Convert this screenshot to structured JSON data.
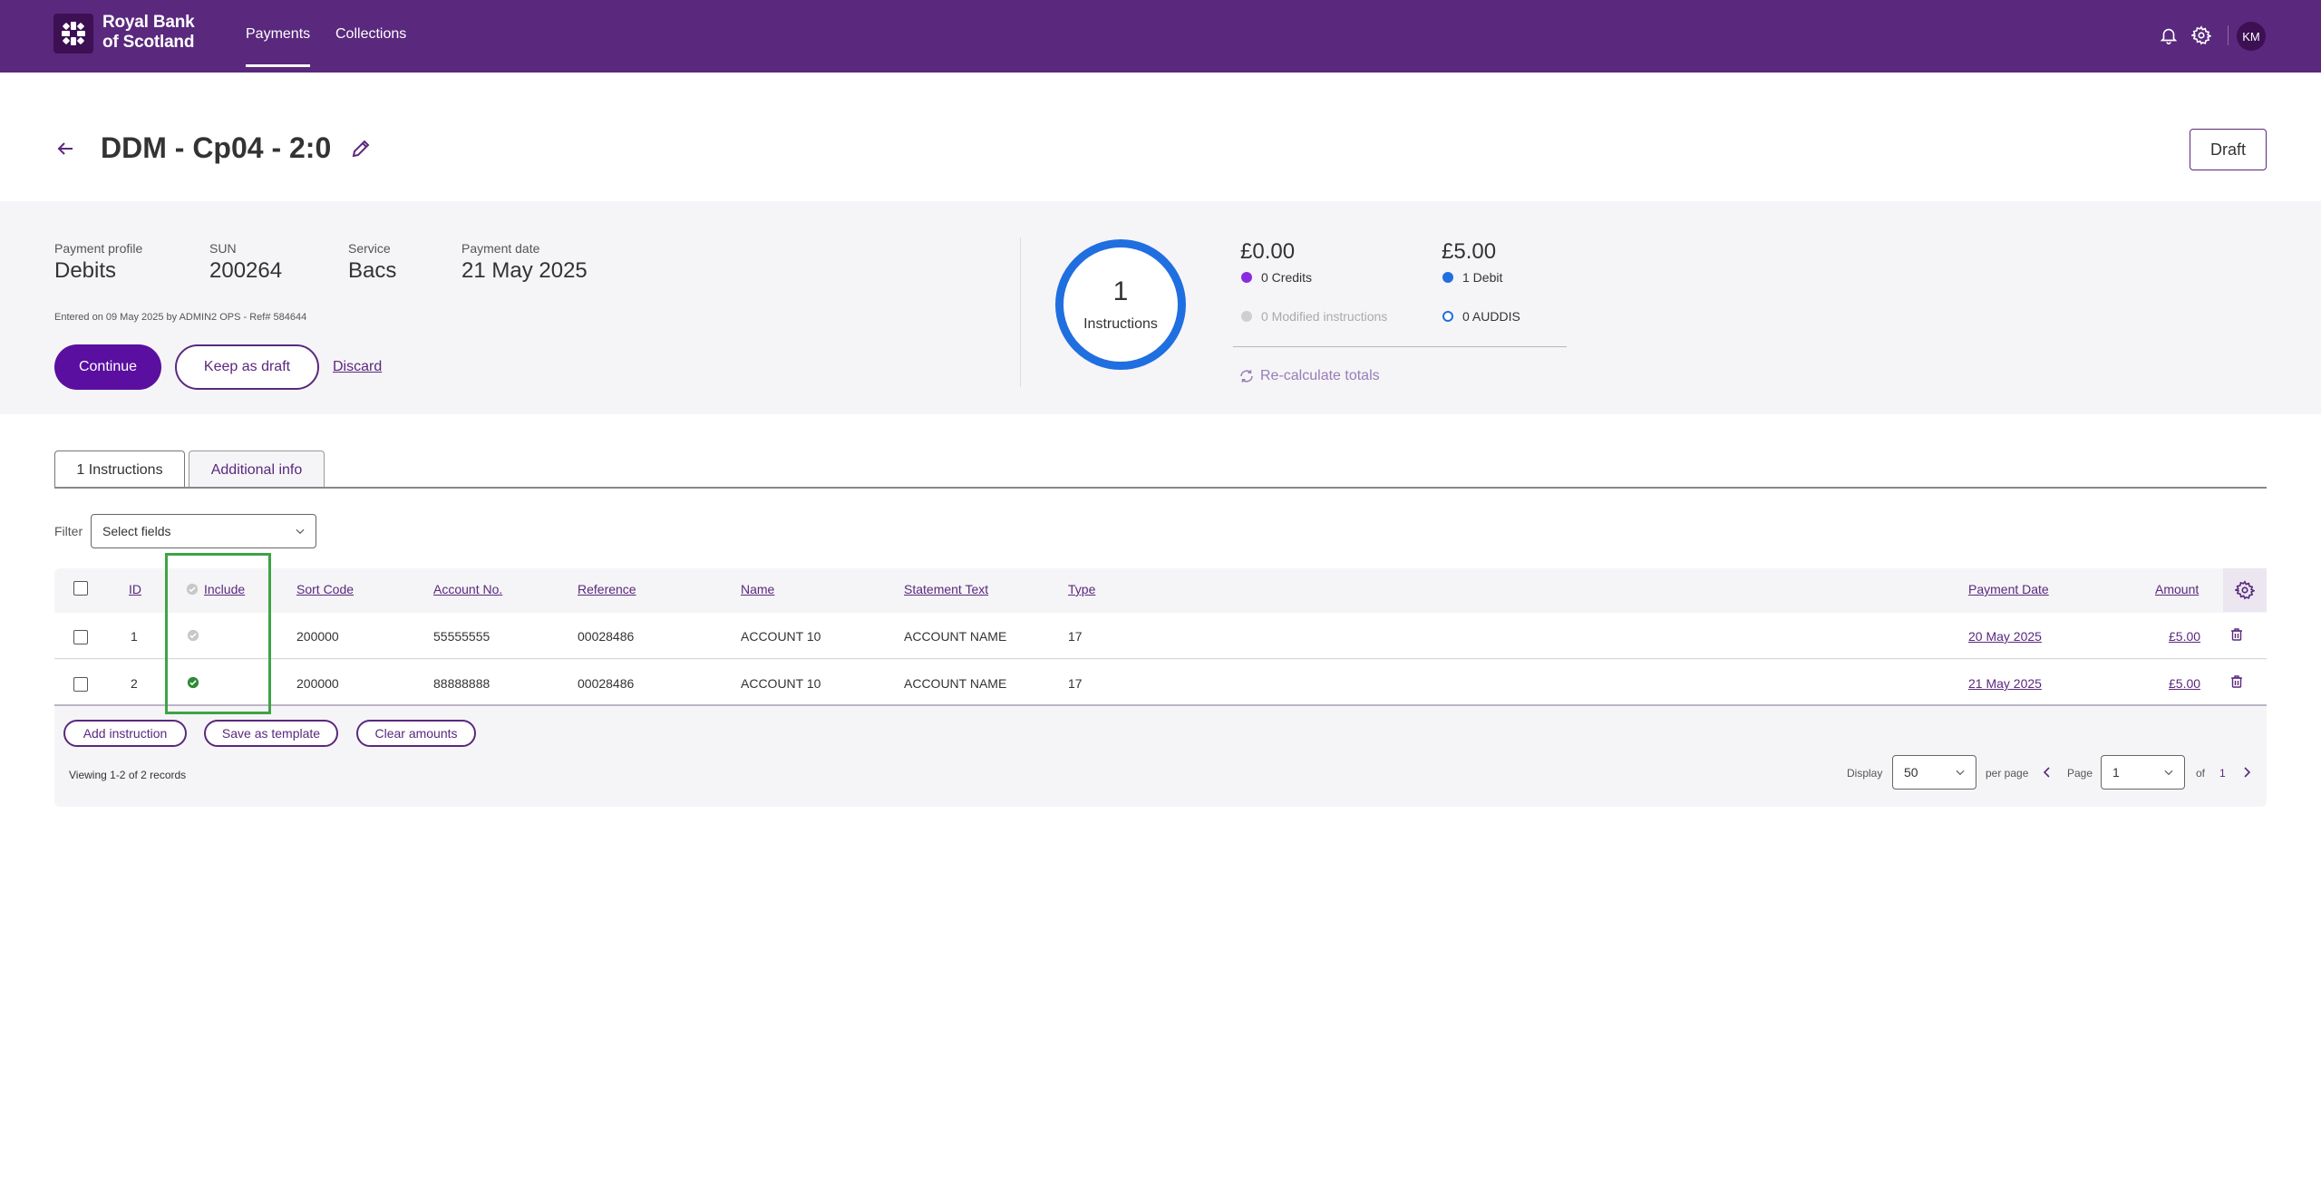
{
  "app": {
    "brand_line1": "Royal Bank",
    "brand_line2": "of Scotland",
    "nav": [
      "Payments",
      "Collections"
    ],
    "user_initials": "KM"
  },
  "header": {
    "title": "DDM - Cp04 - 2:0",
    "status": "Draft"
  },
  "summary": {
    "fields": [
      {
        "label": "Payment profile",
        "value": "Debits"
      },
      {
        "label": "SUN",
        "value": "200264"
      },
      {
        "label": "Service",
        "value": "Bacs"
      },
      {
        "label": "Payment date",
        "value": "21 May 2025"
      }
    ],
    "entered": "Entered on 09 May 2025 by ADMIN2 OPS - Ref# 584644",
    "continue_label": "Continue",
    "keep_draft_label": "Keep as draft",
    "discard_label": "Discard",
    "instructions_count": "1",
    "instructions_label": "Instructions",
    "credits_amount": "£0.00",
    "credits_label": "0 Credits",
    "debits_amount": "£5.00",
    "debits_label": "1 Debit",
    "modified_label": "0 Modified instructions",
    "auddis_label": "0 AUDDIS",
    "recalculate_label": "Re-calculate totals",
    "colors": {
      "credits": "#8a2be2",
      "debits": "#1f6fe0",
      "ring": "#1f6fe0"
    }
  },
  "tabs": [
    "1 Instructions",
    "Additional info"
  ],
  "filter": {
    "label": "Filter",
    "placeholder": "Select fields"
  },
  "table": {
    "columns": [
      "ID",
      "Include",
      "Sort Code",
      "Account No.",
      "Reference",
      "Name",
      "Statement Text",
      "Type",
      "Payment Date",
      "Amount"
    ],
    "rows": [
      {
        "id": "1",
        "include": false,
        "sort_code": "200000",
        "account": "55555555",
        "reference": "00028486",
        "name": "ACCOUNT 10",
        "statement": "ACCOUNT NAME",
        "type": "17",
        "payment_date": "20 May 2025",
        "amount": "£5.00"
      },
      {
        "id": "2",
        "include": true,
        "sort_code": "200000",
        "account": "88888888",
        "reference": "00028486",
        "name": "ACCOUNT 10",
        "statement": "ACCOUNT NAME",
        "type": "17",
        "payment_date": "21 May 2025",
        "amount": "£5.00"
      }
    ],
    "actions": [
      "Add instruction",
      "Save as template",
      "Clear amounts"
    ]
  },
  "pagination": {
    "viewing": "Viewing 1-2 of 2 records",
    "display_label": "Display",
    "per_page_value": "50",
    "per_page_label": "per page",
    "page_label": "Page",
    "page_value": "1",
    "of_label": "of",
    "total_pages": "1"
  }
}
